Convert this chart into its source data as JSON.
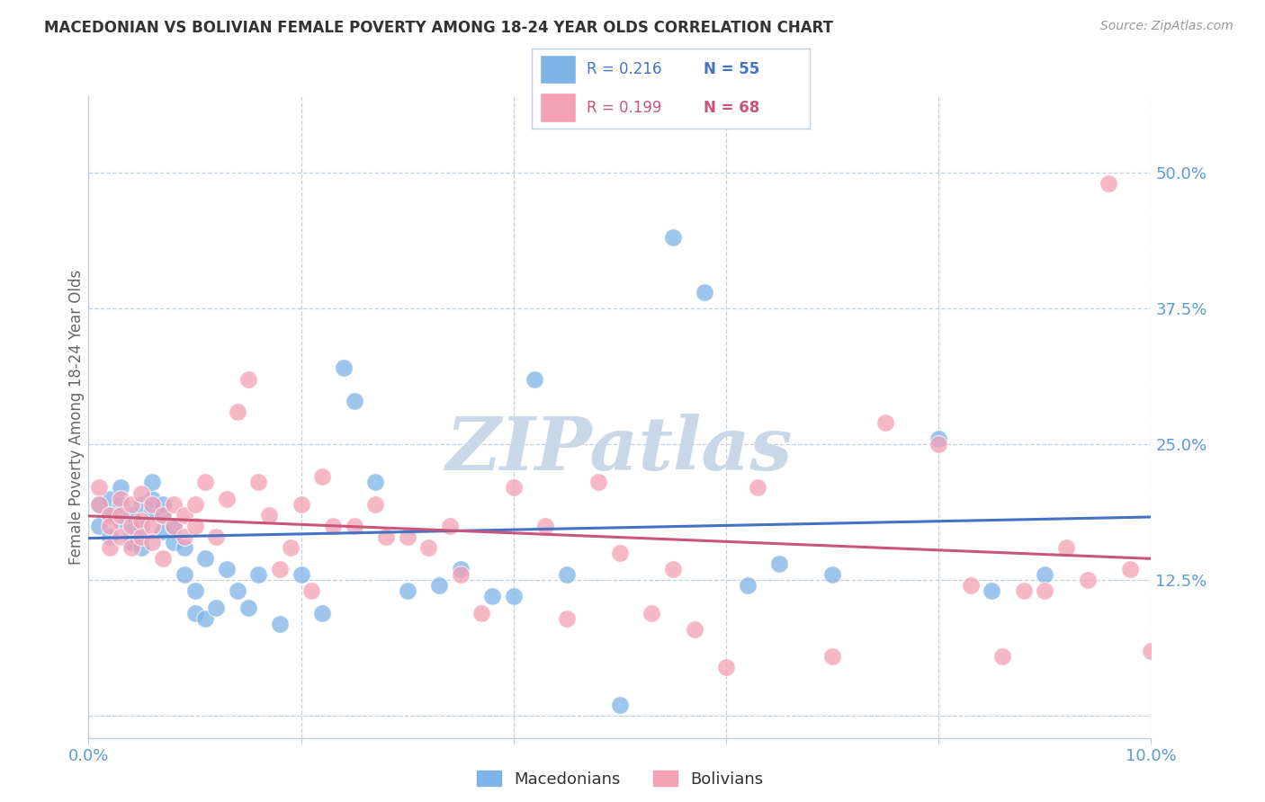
{
  "title": "MACEDONIAN VS BOLIVIAN FEMALE POVERTY AMONG 18-24 YEAR OLDS CORRELATION CHART",
  "source": "Source: ZipAtlas.com",
  "ylabel": "Female Poverty Among 18-24 Year Olds",
  "background_color": "#ffffff",
  "watermark_text": "ZIPatlas",
  "watermark_color": "#c8d8e8",
  "macedonian_color": "#7EB3E8",
  "bolivian_color": "#F4A0B5",
  "macedonian_line_color": "#4472C4",
  "bolivian_line_color": "#C9567A",
  "xmin": 0.0,
  "xmax": 0.1,
  "ymin": -0.02,
  "ymax": 0.57,
  "yticks": [
    0.0,
    0.125,
    0.25,
    0.375,
    0.5
  ],
  "ytick_labels": [
    "",
    "12.5%",
    "25.0%",
    "37.5%",
    "50.0%"
  ],
  "xticks": [
    0.0,
    0.02,
    0.04,
    0.06,
    0.08,
    0.1
  ],
  "xtick_labels": [
    "0.0%",
    "",
    "",
    "",
    "",
    "10.0%"
  ],
  "macedonian_x": [
    0.001,
    0.001,
    0.002,
    0.002,
    0.002,
    0.003,
    0.003,
    0.003,
    0.004,
    0.004,
    0.004,
    0.005,
    0.005,
    0.005,
    0.006,
    0.006,
    0.006,
    0.007,
    0.007,
    0.007,
    0.008,
    0.008,
    0.009,
    0.009,
    0.01,
    0.01,
    0.011,
    0.011,
    0.012,
    0.013,
    0.014,
    0.015,
    0.016,
    0.018,
    0.02,
    0.022,
    0.024,
    0.025,
    0.027,
    0.03,
    0.033,
    0.035,
    0.038,
    0.04,
    0.042,
    0.045,
    0.05,
    0.055,
    0.058,
    0.062,
    0.065,
    0.07,
    0.08,
    0.085,
    0.09
  ],
  "macedonian_y": [
    0.195,
    0.175,
    0.2,
    0.185,
    0.165,
    0.18,
    0.195,
    0.21,
    0.185,
    0.17,
    0.16,
    0.195,
    0.175,
    0.155,
    0.19,
    0.2,
    0.215,
    0.185,
    0.17,
    0.195,
    0.16,
    0.175,
    0.155,
    0.13,
    0.115,
    0.095,
    0.09,
    0.145,
    0.1,
    0.135,
    0.115,
    0.1,
    0.13,
    0.085,
    0.13,
    0.095,
    0.32,
    0.29,
    0.215,
    0.115,
    0.12,
    0.135,
    0.11,
    0.11,
    0.31,
    0.13,
    0.01,
    0.44,
    0.39,
    0.12,
    0.14,
    0.13,
    0.255,
    0.115,
    0.13
  ],
  "bolivian_x": [
    0.001,
    0.001,
    0.002,
    0.002,
    0.002,
    0.003,
    0.003,
    0.003,
    0.004,
    0.004,
    0.004,
    0.005,
    0.005,
    0.005,
    0.006,
    0.006,
    0.006,
    0.007,
    0.007,
    0.008,
    0.008,
    0.009,
    0.009,
    0.01,
    0.01,
    0.011,
    0.012,
    0.013,
    0.014,
    0.015,
    0.016,
    0.017,
    0.018,
    0.019,
    0.02,
    0.021,
    0.022,
    0.023,
    0.025,
    0.027,
    0.028,
    0.03,
    0.032,
    0.034,
    0.035,
    0.037,
    0.04,
    0.043,
    0.045,
    0.048,
    0.05,
    0.053,
    0.055,
    0.057,
    0.06,
    0.063,
    0.07,
    0.075,
    0.08,
    0.083,
    0.086,
    0.088,
    0.09,
    0.092,
    0.094,
    0.096,
    0.098,
    0.1
  ],
  "bolivian_y": [
    0.21,
    0.195,
    0.185,
    0.175,
    0.155,
    0.2,
    0.185,
    0.165,
    0.195,
    0.175,
    0.155,
    0.205,
    0.18,
    0.165,
    0.195,
    0.175,
    0.16,
    0.185,
    0.145,
    0.195,
    0.175,
    0.165,
    0.185,
    0.195,
    0.175,
    0.215,
    0.165,
    0.2,
    0.28,
    0.31,
    0.215,
    0.185,
    0.135,
    0.155,
    0.195,
    0.115,
    0.22,
    0.175,
    0.175,
    0.195,
    0.165,
    0.165,
    0.155,
    0.175,
    0.13,
    0.095,
    0.21,
    0.175,
    0.09,
    0.215,
    0.15,
    0.095,
    0.135,
    0.08,
    0.045,
    0.21,
    0.055,
    0.27,
    0.25,
    0.12,
    0.055,
    0.115,
    0.115,
    0.155,
    0.125,
    0.49,
    0.135,
    0.06
  ]
}
